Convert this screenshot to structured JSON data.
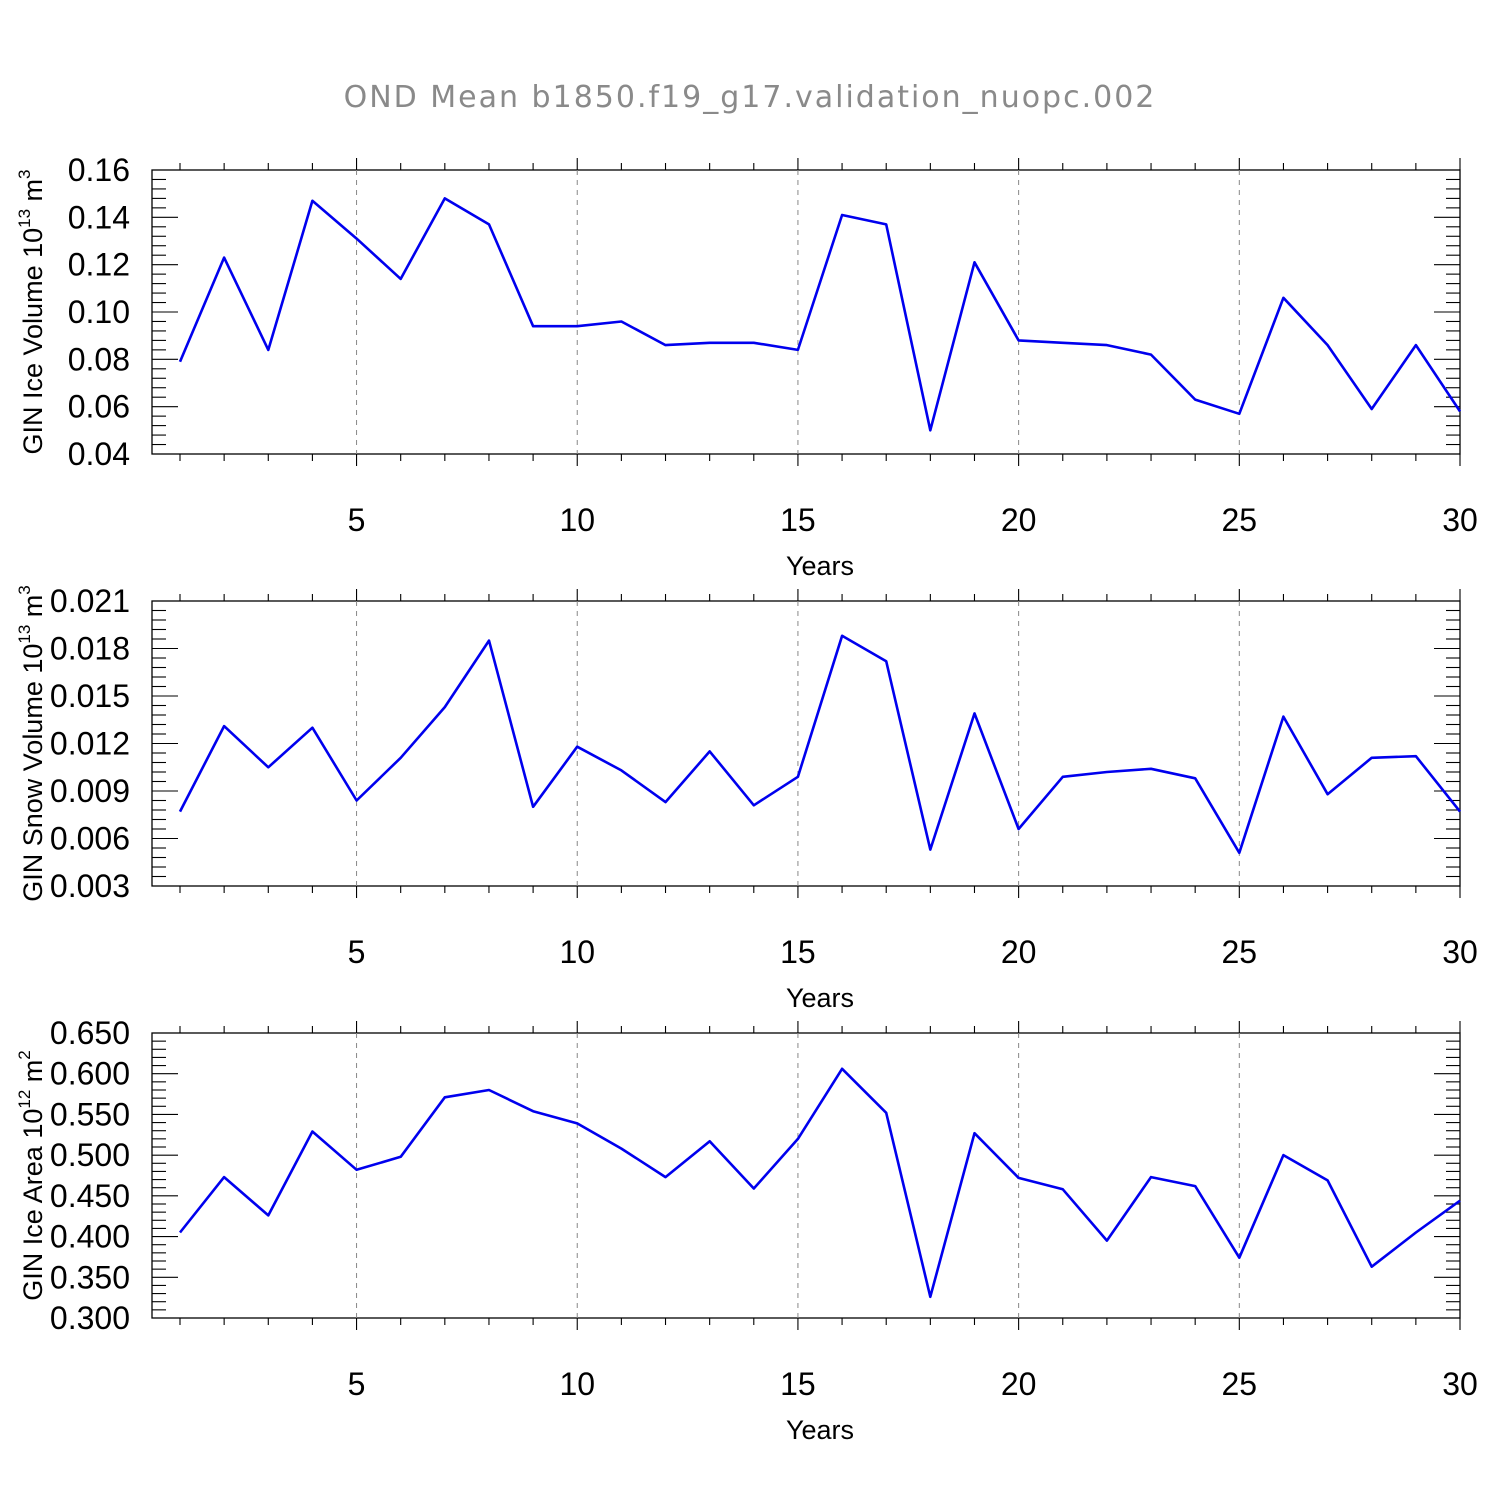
{
  "title": "OND Mean b1850.f19_g17.validation_nuopc.002",
  "colors": {
    "line": "#0000ee",
    "title": "#8a8a8a",
    "grid": "#888888"
  },
  "chart_data": [
    {
      "type": "line",
      "xlabel": "Years",
      "ylabel": {
        "prefix": "GIN Ice Volume 10",
        "exp": "13",
        "unit": " m",
        "unit_exp": "3"
      },
      "xlim": [
        1,
        30
      ],
      "ylim": [
        0.04,
        0.16
      ],
      "xticks": [
        5,
        10,
        15,
        20,
        25,
        30
      ],
      "xtick_labels": [
        "5",
        "10",
        "15",
        "20",
        "25",
        "30"
      ],
      "yticks": [
        0.04,
        0.06,
        0.08,
        0.1,
        0.12,
        0.14,
        0.16
      ],
      "ytick_labels": [
        "0.04",
        "0.06",
        "0.08",
        "0.10",
        "0.12",
        "0.14",
        "0.16"
      ],
      "grid": "vertical dashed at major x ticks",
      "x": [
        1,
        2,
        3,
        4,
        5,
        6,
        7,
        8,
        9,
        10,
        11,
        12,
        13,
        14,
        15,
        16,
        17,
        18,
        19,
        20,
        21,
        22,
        23,
        24,
        25,
        26,
        27,
        28,
        29,
        30
      ],
      "values": [
        0.079,
        0.123,
        0.084,
        0.147,
        0.131,
        0.114,
        0.148,
        0.137,
        0.094,
        0.094,
        0.096,
        0.086,
        0.087,
        0.087,
        0.084,
        0.141,
        0.137,
        0.05,
        0.121,
        0.088,
        0.087,
        0.086,
        0.082,
        0.063,
        0.057,
        0.106,
        0.086,
        0.059,
        0.086,
        0.058
      ]
    },
    {
      "type": "line",
      "xlabel": "Years",
      "ylabel": {
        "prefix": "GIN Snow Volume 10",
        "exp": "13",
        "unit": " m",
        "unit_exp": "3"
      },
      "xlim": [
        1,
        30
      ],
      "ylim": [
        0.003,
        0.021
      ],
      "xticks": [
        5,
        10,
        15,
        20,
        25,
        30
      ],
      "xtick_labels": [
        "5",
        "10",
        "15",
        "20",
        "25",
        "30"
      ],
      "yticks": [
        0.003,
        0.006,
        0.009,
        0.012,
        0.015,
        0.018,
        0.021
      ],
      "ytick_labels": [
        "0.003",
        "0.006",
        "0.009",
        "0.012",
        "0.015",
        "0.018",
        "0.021"
      ],
      "grid": "vertical dashed at major x ticks",
      "x": [
        1,
        2,
        3,
        4,
        5,
        6,
        7,
        8,
        9,
        10,
        11,
        12,
        13,
        14,
        15,
        16,
        17,
        18,
        19,
        20,
        21,
        22,
        23,
        24,
        25,
        26,
        27,
        28,
        29,
        30
      ],
      "values": [
        0.0077,
        0.0131,
        0.0105,
        0.013,
        0.0084,
        0.0111,
        0.0143,
        0.0185,
        0.008,
        0.0118,
        0.0103,
        0.0083,
        0.0115,
        0.0081,
        0.0099,
        0.0188,
        0.0172,
        0.0053,
        0.0139,
        0.0066,
        0.0099,
        0.0102,
        0.0104,
        0.0098,
        0.0051,
        0.0137,
        0.0088,
        0.0111,
        0.0112,
        0.0077
      ]
    },
    {
      "type": "line",
      "xlabel": "Years",
      "ylabel": {
        "prefix": "GIN Ice Area 10",
        "exp": "12",
        "unit": " m",
        "unit_exp": "2"
      },
      "xlim": [
        1,
        30
      ],
      "ylim": [
        0.3,
        0.65
      ],
      "xticks": [
        5,
        10,
        15,
        20,
        25,
        30
      ],
      "xtick_labels": [
        "5",
        "10",
        "15",
        "20",
        "25",
        "30"
      ],
      "yticks": [
        0.3,
        0.35,
        0.4,
        0.45,
        0.5,
        0.55,
        0.6,
        0.65
      ],
      "ytick_labels": [
        "0.300",
        "0.350",
        "0.400",
        "0.450",
        "0.500",
        "0.550",
        "0.600",
        "0.650"
      ],
      "grid": "vertical dashed at major x ticks",
      "x": [
        1,
        2,
        3,
        4,
        5,
        6,
        7,
        8,
        9,
        10,
        11,
        12,
        13,
        14,
        15,
        16,
        17,
        18,
        19,
        20,
        21,
        22,
        23,
        24,
        25,
        26,
        27,
        28,
        29,
        30
      ],
      "values": [
        0.405,
        0.473,
        0.426,
        0.529,
        0.482,
        0.498,
        0.571,
        0.58,
        0.554,
        0.539,
        0.508,
        0.473,
        0.517,
        0.459,
        0.52,
        0.606,
        0.552,
        0.326,
        0.527,
        0.472,
        0.458,
        0.395,
        0.473,
        0.462,
        0.374,
        0.5,
        0.469,
        0.363,
        0.405,
        0.444
      ]
    }
  ]
}
